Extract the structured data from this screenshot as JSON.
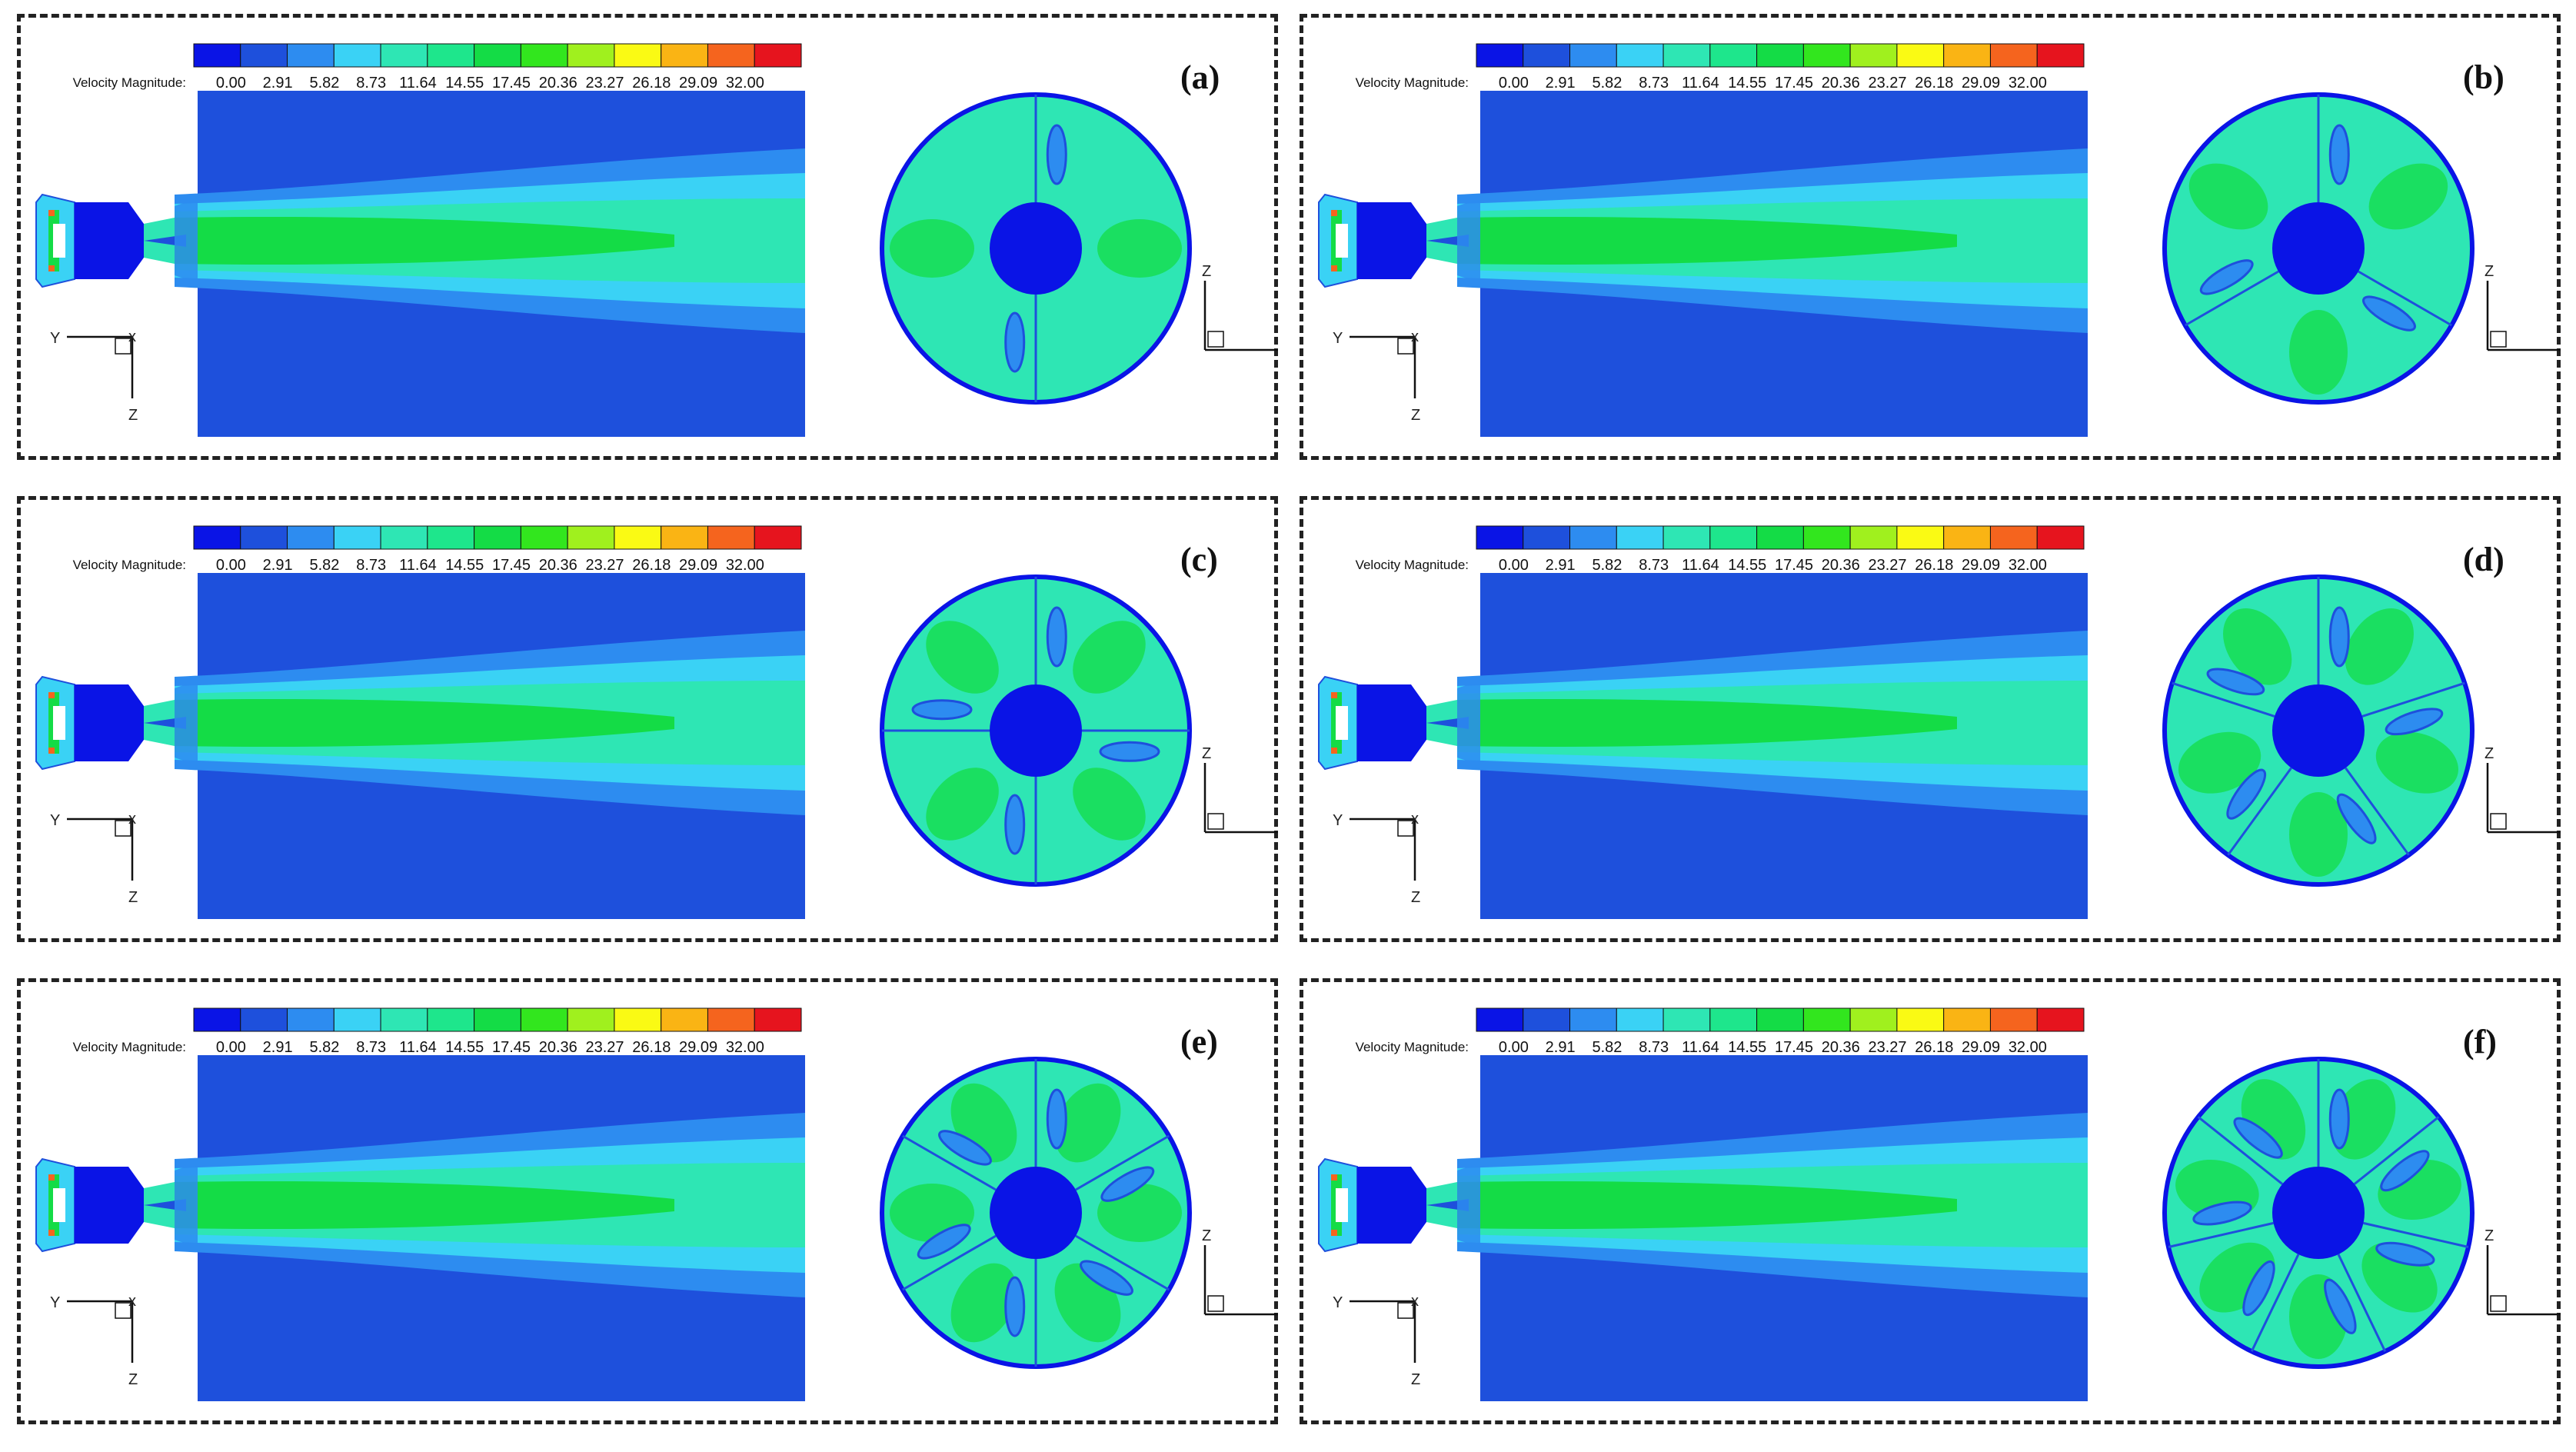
{
  "legend": {
    "title": "Velocity Magnitude:",
    "ticks": [
      "0.00",
      "2.91",
      "5.82",
      "8.73",
      "11.64",
      "14.55",
      "17.45",
      "20.36",
      "23.27",
      "26.18",
      "29.09",
      "32.00"
    ],
    "colors": [
      "#0a14e6",
      "#1e50dc",
      "#2d8cf0",
      "#3ad2f5",
      "#2ee6b4",
      "#1ee68c",
      "#14dc46",
      "#32e61e",
      "#a0f01e",
      "#fafa14",
      "#fab414",
      "#f5641e",
      "#e6141e"
    ]
  },
  "axes": {
    "y": "Y",
    "z": "Z",
    "x": "X"
  },
  "panels": [
    {
      "tag": "(a)",
      "blades": 2
    },
    {
      "tag": "(b)",
      "blades": 3
    },
    {
      "tag": "(c)",
      "blades": 4
    },
    {
      "tag": "(d)",
      "blades": 5
    },
    {
      "tag": "(e)",
      "blades": 6
    },
    {
      "tag": "(f)",
      "blades": 7
    }
  ]
}
